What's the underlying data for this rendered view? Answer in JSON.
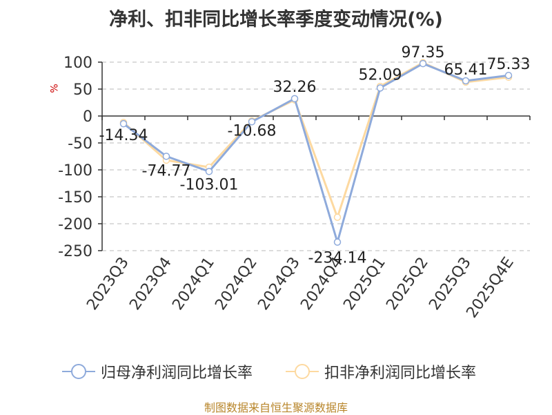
{
  "title": "净利、扣非同比增长率季度变动情况(%)",
  "source": "制图数据来自恒生聚源数据库",
  "chart_data": {
    "type": "line",
    "title": "净利、扣非同比增长率季度变动情况(%)",
    "ylabel": "%",
    "xlabel": "",
    "ylim": [
      -250,
      100
    ],
    "yticks": [
      100,
      50,
      0,
      -50,
      -100,
      -150,
      -200,
      -250
    ],
    "grid": true,
    "legend_position": "bottom",
    "categories": [
      "2023Q3",
      "2023Q4",
      "2024Q1",
      "2024Q2",
      "2024Q3",
      "2024Q4",
      "2025Q1",
      "2025Q2",
      "2025Q3",
      "2025Q4E"
    ],
    "series": [
      {
        "name": "归母净利润同比增长率",
        "color": "#8eaadb",
        "values": [
          -14.34,
          -74.77,
          -103.01,
          -10.68,
          32.26,
          -234.14,
          52.09,
          97.35,
          65.41,
          75.33
        ],
        "labels": [
          "-14.34",
          "-74.77",
          "-103.01",
          "-10.68",
          "32.26",
          "-234.14",
          "52.09",
          "97.35",
          "65.41",
          "75.33"
        ]
      },
      {
        "name": "扣非净利润同比增长率",
        "color": "#fdd9a0",
        "values": [
          -12,
          -82,
          -95,
          -9,
          30,
          -188,
          55,
          99,
          63,
          72
        ]
      }
    ]
  }
}
